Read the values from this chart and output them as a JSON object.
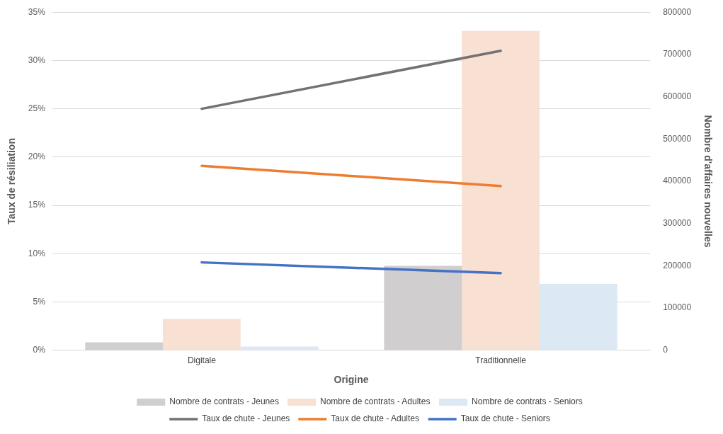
{
  "chart_data": {
    "type": "bar",
    "categories": [
      "Digitale",
      "Traditionnelle"
    ],
    "xlabel": "Origine",
    "ylabel": "Taux de résiliation",
    "y2label": "Nombre d'affaires nouvelles",
    "series": [
      {
        "name": "Nombre de contrats - Jeunes",
        "axis": "y2",
        "color": "#d0cece",
        "values": [
          19000,
          200000
        ]
      },
      {
        "name": "Nombre de contrats - Adultes",
        "axis": "y2",
        "color": "#f8e0d2",
        "values": [
          74000,
          756000
        ]
      },
      {
        "name": "Nombre de contrats - Seniors",
        "axis": "y2",
        "color": "#dde8f5",
        "values": [
          9000,
          157000
        ]
      },
      {
        "name": "Taux de chute - Jeunes",
        "type": "line",
        "axis": "y",
        "color": "#767171",
        "values": [
          25,
          31
        ]
      },
      {
        "name": "Taux de chute - Adultes",
        "type": "line",
        "axis": "y",
        "color": "#ed7d31",
        "values": [
          19.1,
          17
        ]
      },
      {
        "name": "Taux de chute - Seniors",
        "type": "line",
        "axis": "y",
        "color": "#4472c4",
        "values": [
          9.1,
          8
        ]
      }
    ],
    "ylim": [
      0,
      35
    ],
    "yticks": [
      {
        "value": 0,
        "label": "0%"
      },
      {
        "value": 5,
        "label": "5%"
      },
      {
        "value": 10,
        "label": "10%"
      },
      {
        "value": 15,
        "label": "15%"
      },
      {
        "value": 20,
        "label": "20%"
      },
      {
        "value": 25,
        "label": "25%"
      },
      {
        "value": 30,
        "label": "30%"
      },
      {
        "value": 35,
        "label": "35%"
      }
    ],
    "y2lim": [
      0,
      800000
    ],
    "y2ticks": [
      0,
      100000,
      200000,
      300000,
      400000,
      500000,
      600000,
      700000,
      800000
    ],
    "grid": "y",
    "legend": "bottom",
    "marker": "none",
    "line_style": "solid"
  }
}
